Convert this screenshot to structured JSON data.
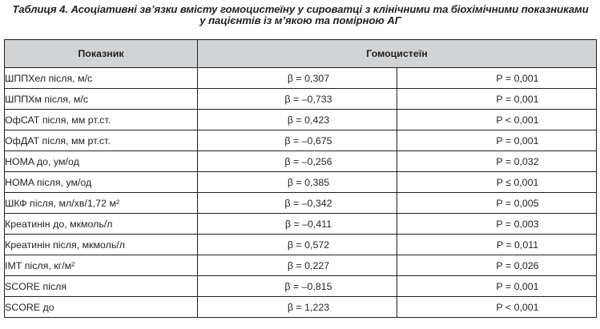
{
  "caption": {
    "line1": "Таблиця 4. Асоціативні зв’язки вмісту гомоцистеїну у сироватці з клінічними та біохімічними показниками",
    "line2": "у пацієнтів із м’якою та помірною АГ"
  },
  "table": {
    "headers": {
      "indicator": "Показник",
      "homocysteine": "Гомоцистеїн"
    },
    "rows": [
      {
        "indicator": "ШППХел після, м/с",
        "beta": "β = 0,307",
        "p": "P = 0,001"
      },
      {
        "indicator": "ШППХм після, м/с",
        "beta": "β = –0,733",
        "p": "P = 0,001"
      },
      {
        "indicator": "ОфСАТ після, мм рт.ст.",
        "beta": "β = 0,423",
        "p": "P < 0,001"
      },
      {
        "indicator": "ОфДАТ після, мм рт.ст.",
        "beta": "β = –0,675",
        "p": "P = 0,001"
      },
      {
        "indicator": "HOMA до, ум/од",
        "beta": "β = –0,256",
        "p": "P = 0,032"
      },
      {
        "indicator": "HOMA після, ум/од",
        "beta": "β = 0,385",
        "p": "P ≤ 0,001"
      },
      {
        "indicator": "ШКФ після, мл/хв/1,72 м²",
        "beta": "β = –0,342",
        "p": "P = 0,005"
      },
      {
        "indicator": "Креатинін до, мкмоль/л",
        "beta": "β = –0,411",
        "p": "P = 0,003"
      },
      {
        "indicator": "Креатинін після, мкмоль/л",
        "beta": "β = 0,572",
        "p": "P = 0,011"
      },
      {
        "indicator": "ІМТ після, кг/м²",
        "beta": "β = 0,227",
        "p": "P = 0,026"
      },
      {
        "indicator": "SCORE після",
        "beta": "β = –0,815",
        "p": "P = 0,001"
      },
      {
        "indicator": "SCORE до",
        "beta": "β = 1,223",
        "p": "P < 0,001"
      }
    ]
  }
}
